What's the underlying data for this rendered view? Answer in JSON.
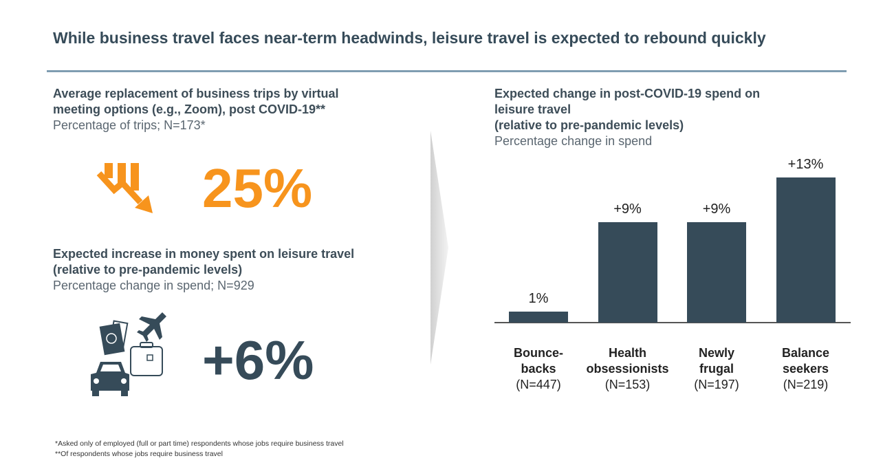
{
  "title": "While business travel faces near-term headwinds, leisure travel is expected to rebound quickly",
  "left": {
    "block1": {
      "heading": [
        "Average replacement of business trips by virtual",
        "meeting options (e.g., Zoom), post COVID-19**"
      ],
      "subheading": "Percentage of trips; N=173*",
      "value": "25%",
      "icon": "declining-chart-arrow-icon"
    },
    "block2": {
      "heading": [
        "Expected increase in money spent on leisure travel",
        "(relative to pre-pandemic levels)"
      ],
      "subheading": "Percentage change in spend; N=929",
      "value": "+6%",
      "icons": [
        "passport-icon",
        "airplane-icon",
        "suitcase-icon",
        "car-icon"
      ]
    }
  },
  "colors": {
    "accent": "#f7941d",
    "bar": "#364b59",
    "rule": "#7f9db1"
  },
  "chart_data": {
    "type": "bar",
    "title": [
      "Expected change in post-COVID-19 spend on",
      "leisure travel",
      "(relative to pre-pandemic levels)"
    ],
    "subtitle": "Percentage change in spend",
    "categories": [
      {
        "name": [
          "Bounce-",
          "backs"
        ],
        "n": "(N=447)"
      },
      {
        "name": [
          "Health",
          "obsessionists"
        ],
        "n": "(N=153)"
      },
      {
        "name": [
          "Newly",
          "frugal"
        ],
        "n": "(N=197)"
      },
      {
        "name": [
          "Balance",
          "seekers"
        ],
        "n": "(N=219)"
      }
    ],
    "values": [
      1,
      9,
      9,
      13
    ],
    "data_labels": [
      "1%",
      "+9%",
      "+9%",
      "+13%"
    ],
    "ylim": [
      0,
      13
    ],
    "grid": false
  },
  "footnotes": [
    "*Asked only of employed (full or part time) respondents whose jobs require business travel",
    "**Of respondents whose jobs require business travel"
  ]
}
